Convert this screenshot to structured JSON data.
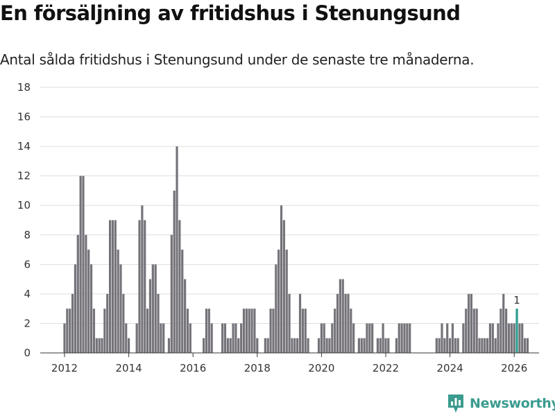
{
  "header": {
    "title": "En försäljning av fritidshus i Stenungsund",
    "subtitle": "Antal sålda fritidshus i Stenungsund under de senaste tre månaderna."
  },
  "brand": {
    "name": "Newsworthy",
    "icon": "newsworthy-logo-icon"
  },
  "colors": {
    "bar": "#757379",
    "highlight": "#2a9d8f",
    "grid": "#dddddd",
    "brand": "#3a9b8e"
  },
  "chart_data": {
    "type": "bar",
    "title": "En försäljning av fritidshus i Stenungsund",
    "subtitle": "Antal sålda fritidshus i Stenungsund under de senaste tre månaderna.",
    "xlabel": "",
    "ylabel": "",
    "grid": true,
    "ylim": [
      0,
      18
    ],
    "yticks": [
      "0",
      "2",
      "4",
      "6",
      "8",
      "10",
      "12",
      "14",
      "16",
      "18"
    ],
    "xticks": [
      {
        "label": "2012",
        "x": 2012
      },
      {
        "label": "2014",
        "x": 2014
      },
      {
        "label": "2016",
        "x": 2016
      },
      {
        "label": "2018",
        "x": 2018
      },
      {
        "label": "2020",
        "x": 2020
      },
      {
        "label": "2022",
        "x": 2022
      },
      {
        "label": "2024",
        "x": 2024
      },
      {
        "label": "2026",
        "x": 2026
      }
    ],
    "x_start": 2012,
    "step": 0.08333,
    "values": [
      2,
      3,
      3,
      4,
      6,
      8,
      12,
      12,
      8,
      7,
      6,
      3,
      1,
      1,
      1,
      3,
      4,
      9,
      9,
      9,
      7,
      6,
      4,
      2,
      1,
      0,
      0,
      2,
      9,
      10,
      9,
      3,
      5,
      6,
      6,
      4,
      2,
      2,
      0,
      1,
      8,
      11,
      14,
      9,
      7,
      5,
      3,
      2,
      0,
      0,
      0,
      0,
      1,
      3,
      3,
      2,
      0,
      0,
      0,
      2,
      2,
      1,
      1,
      2,
      2,
      1,
      2,
      3,
      3,
      3,
      3,
      3,
      1,
      0,
      0,
      1,
      1,
      3,
      3,
      6,
      7,
      10,
      9,
      7,
      4,
      1,
      1,
      1,
      4,
      3,
      3,
      1,
      0,
      0,
      0,
      1,
      2,
      2,
      1,
      1,
      2,
      3,
      4,
      5,
      5,
      4,
      4,
      3,
      2,
      0,
      1,
      1,
      1,
      2,
      2,
      2,
      0,
      1,
      1,
      2,
      1,
      1,
      0,
      0,
      1,
      2,
      2,
      2,
      2,
      2,
      0,
      0,
      0,
      0,
      0,
      0,
      0,
      0,
      0,
      1,
      1,
      2,
      1,
      2,
      1,
      2,
      1,
      1,
      0,
      2,
      3,
      4,
      4,
      3,
      3,
      1,
      1,
      1,
      1,
      2,
      2,
      1,
      2,
      3,
      4,
      3,
      2,
      2,
      2,
      3,
      2,
      2,
      1,
      1
    ],
    "highlight_index": 169,
    "last_label": "1"
  }
}
